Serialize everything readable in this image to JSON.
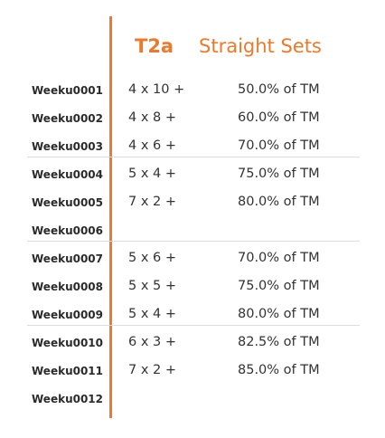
{
  "header": {
    "tier": "T2a",
    "type": "Straight Sets"
  },
  "rows": [
    {
      "week": "Weeku0001",
      "scheme": "4 x 10 +",
      "percent": "50.0% of TM"
    },
    {
      "week": "Weeku0002",
      "scheme": "4 x 8 +",
      "percent": "60.0% of TM"
    },
    {
      "week": "Weeku0003",
      "scheme": "4 x 6 +",
      "percent": "70.0% of TM"
    },
    {
      "week": "Weeku0004",
      "scheme": "5 x 4 +",
      "percent": "75.0% of TM"
    },
    {
      "week": "Weeku0005",
      "scheme": "7 x 2 +",
      "percent": "80.0% of TM"
    },
    {
      "week": "Weeku0006",
      "scheme": "",
      "percent": ""
    },
    {
      "week": "Weeku0007",
      "scheme": "5 x 6 +",
      "percent": "70.0% of TM"
    },
    {
      "week": "Weeku0008",
      "scheme": "5 x 5 +",
      "percent": "75.0% of TM"
    },
    {
      "week": "Weeku0009",
      "scheme": "5 x 4 +",
      "percent": "80.0% of TM"
    },
    {
      "week": "Weeku0010",
      "scheme": "6 x 3 +",
      "percent": "82.5% of TM"
    },
    {
      "week": "Weeku0011",
      "scheme": "7 x 2 +",
      "percent": "85.0% of TM"
    },
    {
      "week": "Weeku0012",
      "scheme": "",
      "percent": ""
    }
  ],
  "colors": {
    "accent": "#ec7a2a",
    "text": "#333333",
    "divider": "#dddddd"
  }
}
